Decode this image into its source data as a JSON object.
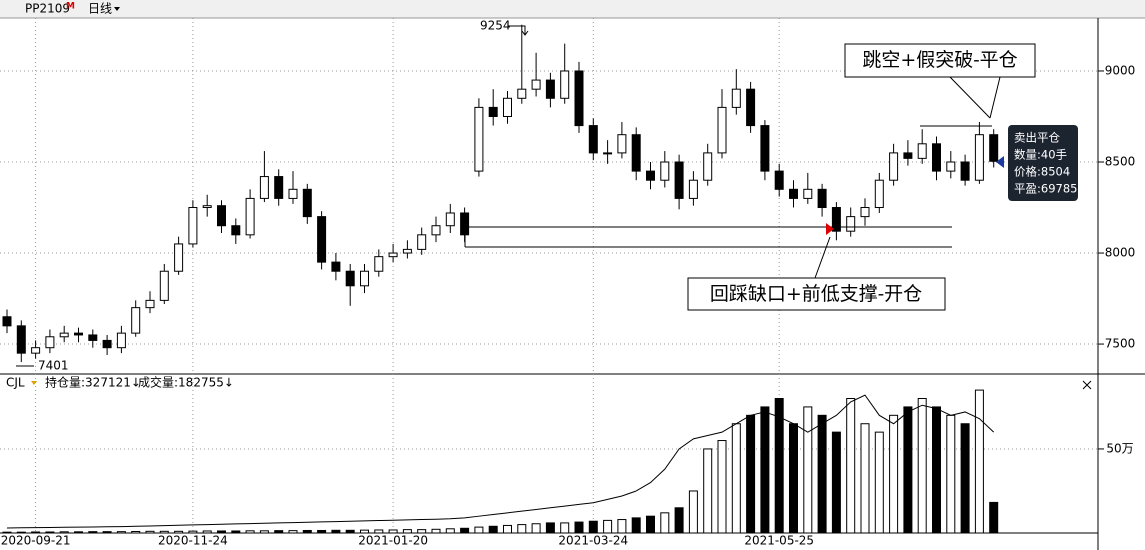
{
  "header": {
    "symbol": "PP2109",
    "flag": "M",
    "period": "日线"
  },
  "chart_data": [
    {
      "type": "candlestick",
      "open": [
        7650,
        7600,
        7450,
        7480,
        7540,
        7560,
        7550,
        7520,
        7480,
        7560,
        7700,
        7740,
        7900,
        8050,
        8250,
        8260,
        8150,
        8100,
        8300,
        8420,
        8300,
        8350,
        8200,
        7950,
        7900,
        7820,
        7900,
        7980,
        8000,
        8020,
        8100,
        8150,
        8220,
        8450,
        8800,
        8750,
        8850,
        8900,
        8950,
        8850,
        9000,
        8700,
        8550,
        8550,
        8650,
        8450,
        8400,
        8500,
        8300,
        8400,
        8550,
        8800,
        8900,
        8700,
        8450,
        8350,
        8300,
        8350,
        8250,
        8120,
        8200,
        8250,
        8400,
        8550,
        8520,
        8600,
        8450,
        8500,
        8400,
        8650
      ],
      "high": [
        7690,
        7630,
        7520,
        7580,
        7600,
        7590,
        7580,
        7550,
        7600,
        7740,
        7790,
        7940,
        8090,
        8290,
        8320,
        8290,
        8190,
        8350,
        8560,
        8460,
        8450,
        8380,
        8230,
        8000,
        7940,
        7940,
        8020,
        8050,
        8070,
        8140,
        8200,
        8270,
        8250,
        8850,
        8900,
        8890,
        9254,
        9100,
        8990,
        9150,
        9050,
        8740,
        8620,
        8720,
        8690,
        8500,
        8560,
        8540,
        8450,
        8600,
        8900,
        9010,
        8940,
        8730,
        8490,
        8400,
        8440,
        8380,
        8280,
        8250,
        8300,
        8440,
        8600,
        8620,
        8680,
        8640,
        8560,
        8540,
        8720,
        8680
      ],
      "low": [
        7560,
        7401,
        7420,
        7450,
        7510,
        7510,
        7480,
        7440,
        7450,
        7540,
        7670,
        7720,
        7880,
        8030,
        8200,
        8110,
        8050,
        8080,
        8280,
        8260,
        8270,
        8160,
        7910,
        7850,
        7710,
        7780,
        7870,
        7950,
        7970,
        7990,
        8060,
        8110,
        8060,
        8420,
        8700,
        8710,
        8820,
        8860,
        8800,
        8820,
        8660,
        8510,
        8490,
        8520,
        8400,
        8350,
        8360,
        8240,
        8260,
        8370,
        8520,
        8760,
        8660,
        8400,
        8310,
        8250,
        8270,
        8200,
        8070,
        8090,
        8150,
        8220,
        8370,
        8480,
        8490,
        8400,
        8410,
        8370,
        8380,
        8470
      ],
      "close": [
        7600,
        7450,
        7480,
        7540,
        7560,
        7550,
        7520,
        7480,
        7560,
        7700,
        7740,
        7900,
        8050,
        8250,
        8260,
        8150,
        8100,
        8300,
        8420,
        8300,
        8350,
        8200,
        7950,
        7900,
        7820,
        7900,
        7980,
        8000,
        8020,
        8100,
        8150,
        8220,
        8100,
        8800,
        8750,
        8850,
        8900,
        8950,
        8850,
        9000,
        8700,
        8550,
        8550,
        8650,
        8450,
        8400,
        8500,
        8300,
        8400,
        8550,
        8800,
        8900,
        8700,
        8450,
        8350,
        8300,
        8350,
        8250,
        8120,
        8200,
        8250,
        8400,
        8550,
        8520,
        8600,
        8450,
        8500,
        8400,
        8650,
        8504
      ],
      "ylim": [
        7341,
        9291
      ],
      "yticks": [
        7500,
        8000,
        8500,
        9000
      ],
      "grid": true,
      "up_color": "#ffffff",
      "down_color": "#000000",
      "annotations": {
        "top": "跳空+假突破-平仓",
        "bottom": "回踩缺口+前低支撑-开仓"
      },
      "tooltip": [
        "卖出平仓",
        "数量:40手",
        "价格:8504",
        "平盈:69785"
      ]
    },
    {
      "type": "volume",
      "title": "CJL",
      "legend": [
        "持仓量:327121↓",
        "成交量:182755↓"
      ],
      "categories": [
        null,
        null,
        "2020-09-21",
        null,
        null,
        null,
        null,
        null,
        null,
        null,
        null,
        null,
        null,
        "2020-11-24",
        null,
        null,
        null,
        null,
        null,
        null,
        null,
        null,
        null,
        null,
        null,
        null,
        null,
        "2021-01-20",
        null,
        null,
        null,
        null,
        null,
        null,
        null,
        null,
        null,
        null,
        null,
        null,
        null,
        "2021-03-24",
        null,
        null,
        null,
        null,
        null,
        null,
        null,
        null,
        null,
        null,
        null,
        null,
        "2021-05-25",
        null,
        null,
        null,
        null,
        null,
        null,
        null,
        null,
        null,
        null,
        null,
        null,
        null,
        null,
        null
      ],
      "series": [
        {
          "color": "#000000",
          "values": [
            5000,
            5000,
            6000,
            6000,
            7000,
            7000,
            8000,
            8000,
            8000,
            9000,
            10000,
            10000,
            10000,
            11000,
            12000,
            12000,
            12000,
            13000,
            13000,
            14000,
            14000,
            15000,
            15000,
            16000,
            16000,
            17000,
            18000,
            18000,
            20000,
            20000,
            22000,
            25000,
            28000,
            35000,
            40000,
            45000,
            50000,
            55000,
            60000,
            60000,
            65000,
            70000,
            75000,
            80000,
            90000,
            100000,
            120000,
            150000,
            250000,
            500000,
            550000,
            650000,
            700000,
            750000,
            800000,
            650000,
            750000,
            700000,
            600000,
            800000,
            650000,
            600000,
            700000,
            750000,
            800000,
            750000,
            700000,
            650000,
            850000,
            182000
          ]
        },
        {
          "color": "#000000",
          "values": [
            30000,
            31000,
            32000,
            33000,
            34000,
            35000,
            36000,
            37000,
            38000,
            40000,
            42000,
            44000,
            46000,
            48000,
            50000,
            52000,
            54000,
            56000,
            58000,
            60000,
            62000,
            64000,
            66000,
            68000,
            70000,
            72000,
            74000,
            76000,
            78000,
            80000,
            82000,
            85000,
            90000,
            100000,
            110000,
            120000,
            130000,
            140000,
            150000,
            160000,
            170000,
            180000,
            200000,
            220000,
            250000,
            300000,
            380000,
            500000,
            560000,
            580000,
            600000,
            650000,
            700000,
            720000,
            690000,
            650000,
            600000,
            650000,
            700000,
            780000,
            820000,
            700000,
            650000,
            720000,
            760000,
            740000,
            700000,
            720000,
            680000,
            600000
          ]
        }
      ],
      "ylim": [
        0,
        922000
      ],
      "yticks": [
        {
          "value": 500000,
          "label": "50万"
        }
      ]
    }
  ]
}
